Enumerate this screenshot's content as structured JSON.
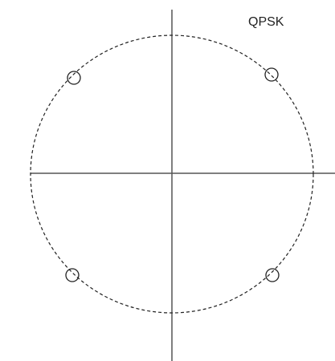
{
  "diagram": {
    "title": "QPSK"
  }
}
